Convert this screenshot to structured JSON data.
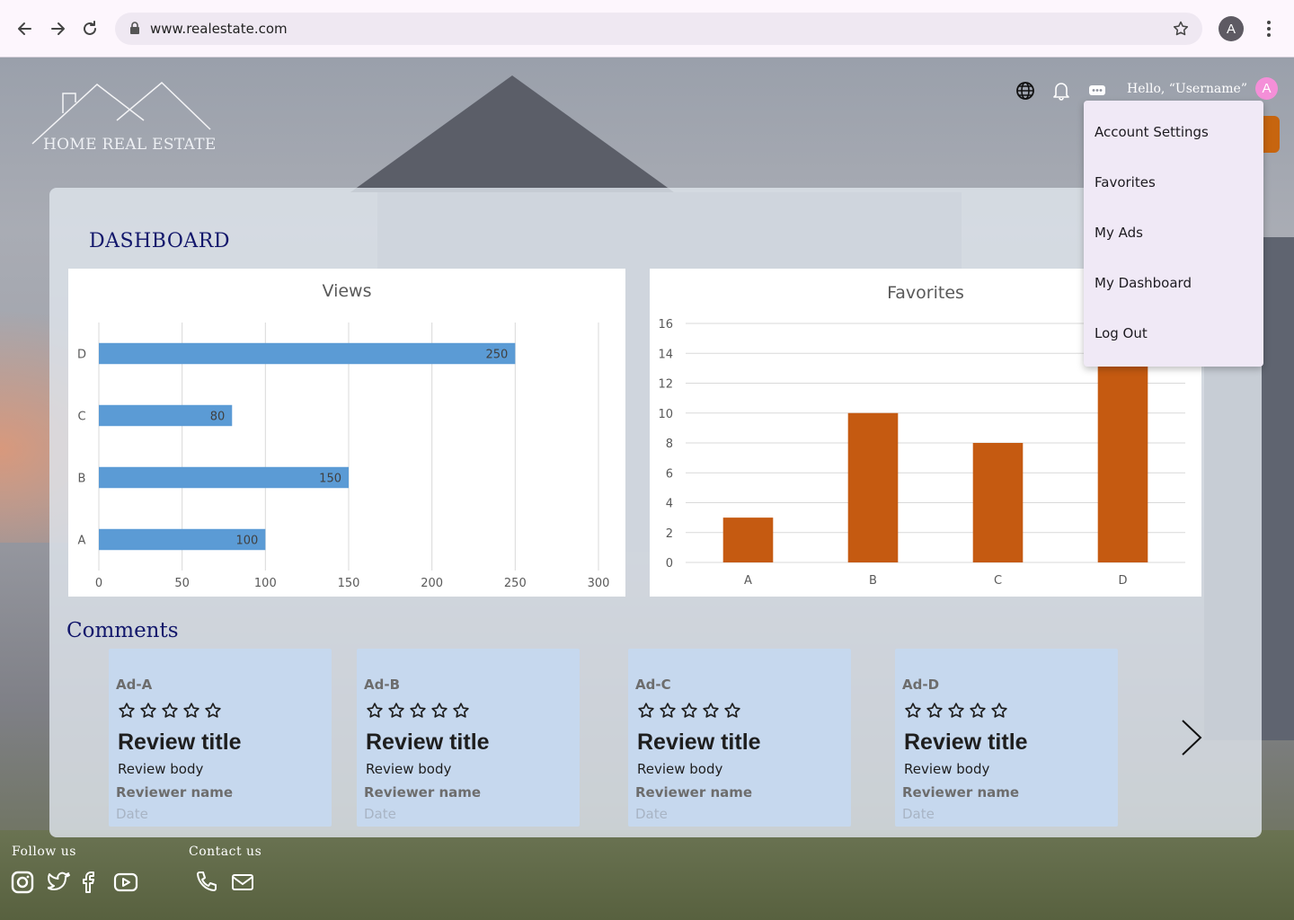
{
  "browser": {
    "url": "www.realestate.com",
    "profile_initial": "A"
  },
  "site": {
    "logo_text_home": "HOME",
    "logo_text_rest": "REAL ESTATE",
    "greeting": "Hello, “Username”",
    "avatar_initial": "A"
  },
  "menu": {
    "items": [
      "Account Settings",
      "Favorites",
      "My Ads",
      "My Dashboard",
      "Log Out"
    ]
  },
  "dashboard": {
    "title": "DASHBOARD"
  },
  "chart_data": [
    {
      "type": "bar",
      "orientation": "horizontal",
      "title": "Views",
      "categories": [
        "A",
        "B",
        "C",
        "D"
      ],
      "values": [
        100,
        150,
        80,
        250
      ],
      "xlim": [
        0,
        300
      ],
      "xticks": [
        0,
        50,
        100,
        150,
        200,
        250,
        300
      ],
      "color": "#5b9bd5",
      "data_labels": true,
      "grid": true
    },
    {
      "type": "bar",
      "orientation": "vertical",
      "title": "Favorites",
      "categories": [
        "A",
        "B",
        "C",
        "D"
      ],
      "values": [
        3,
        10,
        8,
        16
      ],
      "ylim": [
        0,
        16
      ],
      "yticks": [
        0,
        2,
        4,
        6,
        8,
        10,
        12,
        14,
        16
      ],
      "color": "#c55a11",
      "grid": true
    }
  ],
  "comments": {
    "title": "Comments",
    "cards": [
      {
        "ad": "Ad-A",
        "title": "Review title",
        "body": "Review body",
        "reviewer": "Reviewer name",
        "date": "Date"
      },
      {
        "ad": "Ad-B",
        "title": "Review title",
        "body": "Review body",
        "reviewer": "Reviewer name",
        "date": "Date"
      },
      {
        "ad": "Ad-C",
        "title": "Review title",
        "body": "Review body",
        "reviewer": "Reviewer name",
        "date": "Date"
      },
      {
        "ad": "Ad-D",
        "title": "Review title",
        "body": "Review body",
        "reviewer": "Reviewer name",
        "date": "Date"
      }
    ]
  },
  "footer": {
    "follow_label": "Follow us",
    "contact_label": "Contact us",
    "social_icons": [
      "instagram-icon",
      "twitter-icon",
      "facebook-icon",
      "youtube-icon"
    ],
    "contact_icons": [
      "phone-icon",
      "mail-icon"
    ]
  }
}
